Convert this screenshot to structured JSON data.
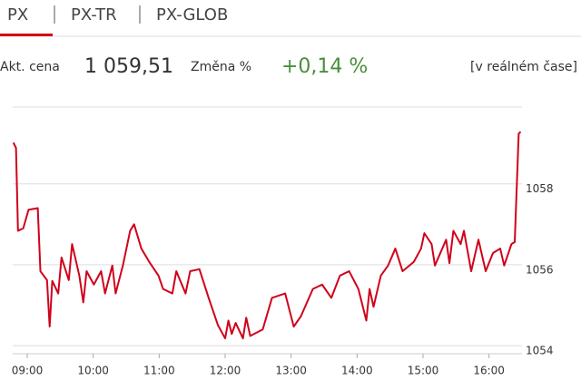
{
  "tabs": [
    "PX",
    "PX-TR",
    "PX-GLOB"
  ],
  "quote": {
    "price_label": "Akt. cena",
    "price": "1 059,51",
    "change_label": "Změna %",
    "change": "+0,14 %",
    "mode": "[v reálném čase]"
  },
  "chart_data": {
    "type": "line",
    "x": [
      8.79,
      8.83,
      8.86,
      8.94,
      9.02,
      9.16,
      9.2,
      9.3,
      9.34,
      9.38,
      9.47,
      9.52,
      9.63,
      9.68,
      9.79,
      9.85,
      9.9,
      10.01,
      10.12,
      10.18,
      10.29,
      10.34,
      10.45,
      10.56,
      10.62,
      10.73,
      10.85,
      10.99,
      11.06,
      11.2,
      11.26,
      11.4,
      11.47,
      11.61,
      11.75,
      11.89,
      12.0,
      12.05,
      12.1,
      12.16,
      12.27,
      12.32,
      12.38,
      12.57,
      12.71,
      12.91,
      13.04,
      13.15,
      13.33,
      13.47,
      13.61,
      13.74,
      13.88,
      14.02,
      14.14,
      14.19,
      14.25,
      14.36,
      14.47,
      14.58,
      14.69,
      14.86,
      14.97,
      15.02,
      15.13,
      15.18,
      15.35,
      15.4,
      15.46,
      15.57,
      15.62,
      15.73,
      15.84,
      15.95,
      16.06,
      16.17,
      16.23,
      16.34,
      16.39,
      16.45,
      16.48
    ],
    "series": [
      {
        "color": "#d0021b",
        "values": [
          1059.02,
          1058.89,
          1056.84,
          1056.9,
          1057.36,
          1057.4,
          1055.84,
          1055.62,
          1054.47,
          1055.6,
          1055.29,
          1056.18,
          1055.62,
          1056.51,
          1055.73,
          1055.07,
          1055.84,
          1055.51,
          1055.84,
          1055.29,
          1055.98,
          1055.29,
          1055.98,
          1056.84,
          1057.0,
          1056.4,
          1056.07,
          1055.73,
          1055.4,
          1055.29,
          1055.84,
          1055.29,
          1055.84,
          1055.89,
          1055.18,
          1054.51,
          1054.18,
          1054.62,
          1054.29,
          1054.56,
          1054.18,
          1054.69,
          1054.24,
          1054.4,
          1055.18,
          1055.29,
          1054.47,
          1054.73,
          1055.4,
          1055.51,
          1055.18,
          1055.73,
          1055.84,
          1055.4,
          1054.62,
          1055.4,
          1054.96,
          1055.73,
          1055.98,
          1056.4,
          1055.84,
          1056.07,
          1056.4,
          1056.78,
          1056.51,
          1055.98,
          1056.62,
          1056.04,
          1056.84,
          1056.51,
          1056.84,
          1055.84,
          1056.62,
          1055.84,
          1056.29,
          1056.4,
          1055.98,
          1056.51,
          1056.56,
          1059.24,
          1059.29
        ]
      }
    ],
    "xlim": [
      8.78,
      16.5
    ],
    "xticks": [
      {
        "value": 9,
        "label": "09:00"
      },
      {
        "value": 10,
        "label": "10:00"
      },
      {
        "value": 11,
        "label": "11:00"
      },
      {
        "value": 12,
        "label": "12:00"
      },
      {
        "value": 13,
        "label": "13:00"
      },
      {
        "value": 14,
        "label": "14:00"
      },
      {
        "value": 15,
        "label": "15:00"
      },
      {
        "value": 16,
        "label": "16:00"
      }
    ],
    "ylim": [
      1053.8,
      1059.9
    ],
    "yticks": [
      1054,
      1056,
      1058
    ],
    "grid": true
  }
}
